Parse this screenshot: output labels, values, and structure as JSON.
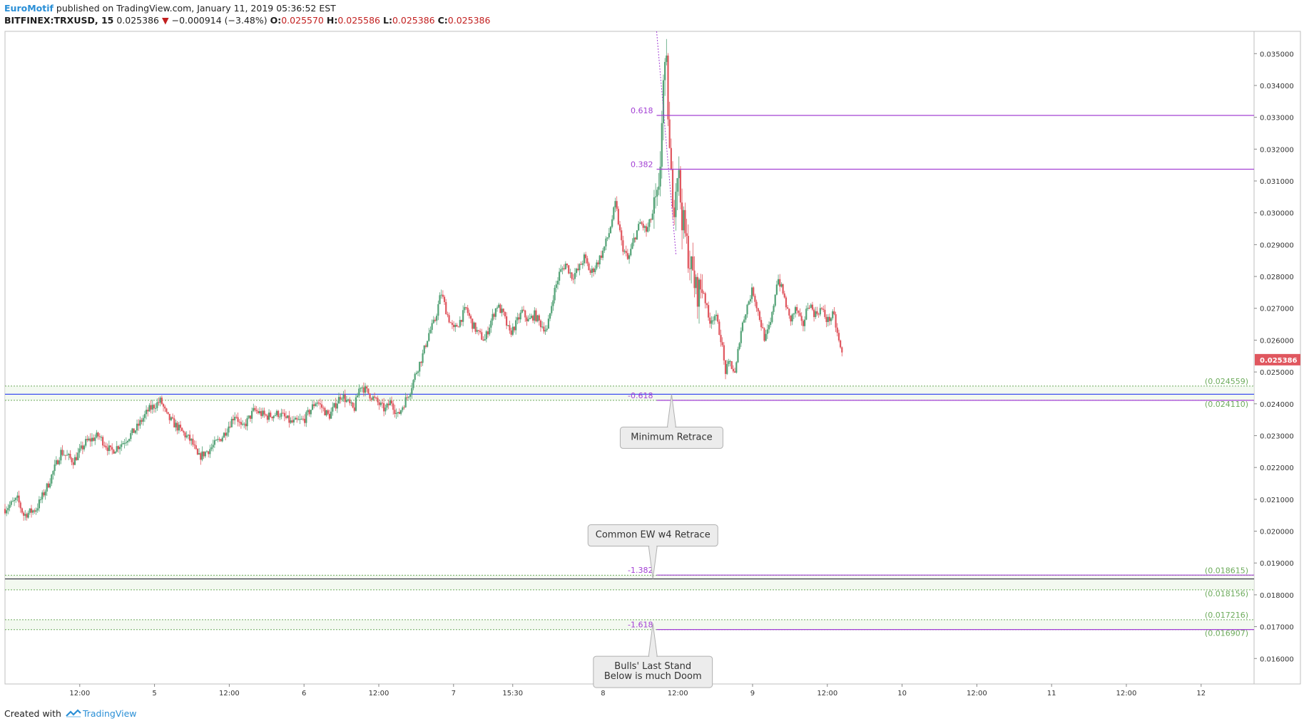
{
  "header": {
    "author": "EuroMotif",
    "published": "published on TradingView.com, January 11, 2019 05:36:52 EST",
    "symbol": "BITFINEX:TRXUSD, 15",
    "last": "0.025386",
    "change_arrow": "▼",
    "change": "−0.000914 (−3.48%)",
    "open_label": "O:",
    "open": "0.025570",
    "high_label": "H:",
    "high": "0.025586",
    "low_label": "L:",
    "low": "0.025386",
    "close_label": "C:",
    "close": "0.025386"
  },
  "footer": {
    "created_with": "Created with",
    "brand": "TradingView"
  },
  "colors": {
    "up": "#53a276",
    "down": "#e0575f",
    "fib": "#a340d4",
    "blue": "#3d4ef0",
    "green_zone": "#6dab5c",
    "grid_border": "#cfcfcf",
    "price_tag": "#e0575f"
  },
  "chart_data": {
    "type": "candlestick",
    "symbol": "BITFINEX:TRXUSD",
    "interval": "15",
    "ylim": [
      0.0152,
      0.0357
    ],
    "y_ticks": [
      "0.035000",
      "0.034000",
      "0.033000",
      "0.032000",
      "0.031000",
      "0.030000",
      "0.029000",
      "0.028000",
      "0.027000",
      "0.026000",
      "0.025000",
      "0.024000",
      "0.023000",
      "0.022000",
      "0.021000",
      "0.020000",
      "0.019000",
      "0.018000",
      "0.017000",
      "0.016000"
    ],
    "x_ticks": [
      {
        "label": "12:00",
        "t": 12
      },
      {
        "label": "5",
        "t": 24
      },
      {
        "label": "12:00",
        "t": 36
      },
      {
        "label": "6",
        "t": 48
      },
      {
        "label": "12:00",
        "t": 60
      },
      {
        "label": "7",
        "t": 72
      },
      {
        "label": "15:30",
        "t": 81.5
      },
      {
        "label": "8",
        "t": 96
      },
      {
        "label": "12:00",
        "t": 108
      },
      {
        "label": "9",
        "t": 120
      },
      {
        "label": "12:00",
        "t": 132
      },
      {
        "label": "10",
        "t": 144
      },
      {
        "label": "12:00",
        "t": 156
      },
      {
        "label": "11",
        "t": 168
      },
      {
        "label": "12:00",
        "t": 180
      },
      {
        "label": "12",
        "t": 192
      }
    ],
    "price_path": [
      [
        0,
        0.0207
      ],
      [
        2,
        0.021
      ],
      [
        3,
        0.0205
      ],
      [
        5,
        0.0207
      ],
      [
        7,
        0.0215
      ],
      [
        9,
        0.0225
      ],
      [
        11,
        0.0222
      ],
      [
        13,
        0.0228
      ],
      [
        15,
        0.023
      ],
      [
        17,
        0.0225
      ],
      [
        19,
        0.0228
      ],
      [
        21,
        0.0232
      ],
      [
        23,
        0.0238
      ],
      [
        25,
        0.0241
      ],
      [
        26,
        0.0236
      ],
      [
        28,
        0.0232
      ],
      [
        30,
        0.0228
      ],
      [
        31,
        0.0223
      ],
      [
        33,
        0.0226
      ],
      [
        35,
        0.023
      ],
      [
        37,
        0.0237
      ],
      [
        38,
        0.0232
      ],
      [
        40,
        0.0238
      ],
      [
        42,
        0.0236
      ],
      [
        44,
        0.0237
      ],
      [
        46,
        0.0234
      ],
      [
        48,
        0.0235
      ],
      [
        50,
        0.0241
      ],
      [
        52,
        0.0236
      ],
      [
        54,
        0.0243
      ],
      [
        56,
        0.0238
      ],
      [
        57,
        0.0246
      ],
      [
        59,
        0.0242
      ],
      [
        61,
        0.0238
      ],
      [
        62,
        0.0241
      ],
      [
        63,
        0.0236
      ],
      [
        65,
        0.0244
      ],
      [
        66,
        0.025
      ],
      [
        67,
        0.0255
      ],
      [
        68,
        0.0262
      ],
      [
        69,
        0.0266
      ],
      [
        70,
        0.0275
      ],
      [
        71,
        0.0268
      ],
      [
        72,
        0.0263
      ],
      [
        73,
        0.0266
      ],
      [
        74,
        0.027
      ],
      [
        75,
        0.0265
      ],
      [
        76,
        0.0262
      ],
      [
        77,
        0.026
      ],
      [
        78,
        0.0266
      ],
      [
        79,
        0.0271
      ],
      [
        80,
        0.0268
      ],
      [
        81,
        0.0262
      ],
      [
        82,
        0.0265
      ],
      [
        83,
        0.0269
      ],
      [
        84,
        0.0266
      ],
      [
        85,
        0.0268
      ],
      [
        86,
        0.0265
      ],
      [
        87,
        0.0263
      ],
      [
        88,
        0.0274
      ],
      [
        89,
        0.0281
      ],
      [
        90,
        0.0284
      ],
      [
        91,
        0.028
      ],
      [
        92,
        0.0282
      ],
      [
        93,
        0.0286
      ],
      [
        94,
        0.0281
      ],
      [
        95,
        0.0284
      ],
      [
        96,
        0.0288
      ],
      [
        97,
        0.0294
      ],
      [
        98,
        0.0303
      ],
      [
        99,
        0.029
      ],
      [
        100,
        0.0285
      ],
      [
        101,
        0.0292
      ],
      [
        102,
        0.0297
      ],
      [
        103,
        0.0294
      ],
      [
        104,
        0.03
      ],
      [
        105,
        0.0305
      ],
      [
        105.6,
        0.034
      ],
      [
        106.2,
        0.0345
      ],
      [
        106.8,
        0.0312
      ],
      [
        107.4,
        0.0303
      ],
      [
        108,
        0.0315
      ],
      [
        108.6,
        0.03
      ],
      [
        109.4,
        0.029
      ],
      [
        110,
        0.0284
      ],
      [
        111,
        0.0275
      ],
      [
        112,
        0.0277
      ],
      [
        113,
        0.0266
      ],
      [
        114,
        0.0268
      ],
      [
        115,
        0.026
      ],
      [
        115.6,
        0.025
      ],
      [
        116.4,
        0.0253
      ],
      [
        117.2,
        0.0249
      ],
      [
        118,
        0.0262
      ],
      [
        119,
        0.027
      ],
      [
        120,
        0.0276
      ],
      [
        121,
        0.0268
      ],
      [
        122,
        0.026
      ],
      [
        123,
        0.0266
      ],
      [
        124,
        0.028
      ],
      [
        125,
        0.0274
      ],
      [
        126,
        0.0266
      ],
      [
        127,
        0.027
      ],
      [
        128,
        0.0264
      ],
      [
        129,
        0.0272
      ],
      [
        130,
        0.0268
      ],
      [
        131,
        0.027
      ],
      [
        132,
        0.0266
      ],
      [
        133,
        0.0268
      ],
      [
        134,
        0.0258
      ],
      [
        134.6,
        0.0254
      ]
    ],
    "fib_levels": [
      {
        "label": "0.618",
        "price": 0.03306
      },
      {
        "label": "0.382",
        "price": 0.03137
      },
      {
        "label": "-0.618",
        "price": 0.02411
      },
      {
        "label": "-1.382",
        "price": 0.01862
      },
      {
        "label": "-1.618",
        "price": 0.01691
      }
    ],
    "horizontal_lines": [
      {
        "price": 0.0243,
        "color": "blue"
      },
      {
        "price": 0.0185,
        "color": "dark"
      }
    ],
    "zones": [
      {
        "top": 0.024559,
        "bottom": 0.02411
      },
      {
        "top": 0.018615,
        "bottom": 0.018156
      },
      {
        "top": 0.017216,
        "bottom": 0.016907
      }
    ],
    "zone_labels": [
      "(0.024559)",
      "(0.024110)",
      "(0.018615)",
      "(0.018156)",
      "(0.017216)",
      "(0.016907)"
    ],
    "last_price_tag": "0.025386",
    "callouts": [
      {
        "lines": [
          "Minimum Retrace"
        ],
        "tip_t": 107,
        "tip_price": 0.0243,
        "direction": "up"
      },
      {
        "lines": [
          "Common EW w4 Retrace"
        ],
        "tip_t": 104,
        "tip_price": 0.0185,
        "direction": "down"
      },
      {
        "lines": [
          "Bulls' Last Stand",
          "Below is much Doom"
        ],
        "tip_t": 104,
        "tip_price": 0.0171,
        "direction": "up"
      }
    ]
  }
}
